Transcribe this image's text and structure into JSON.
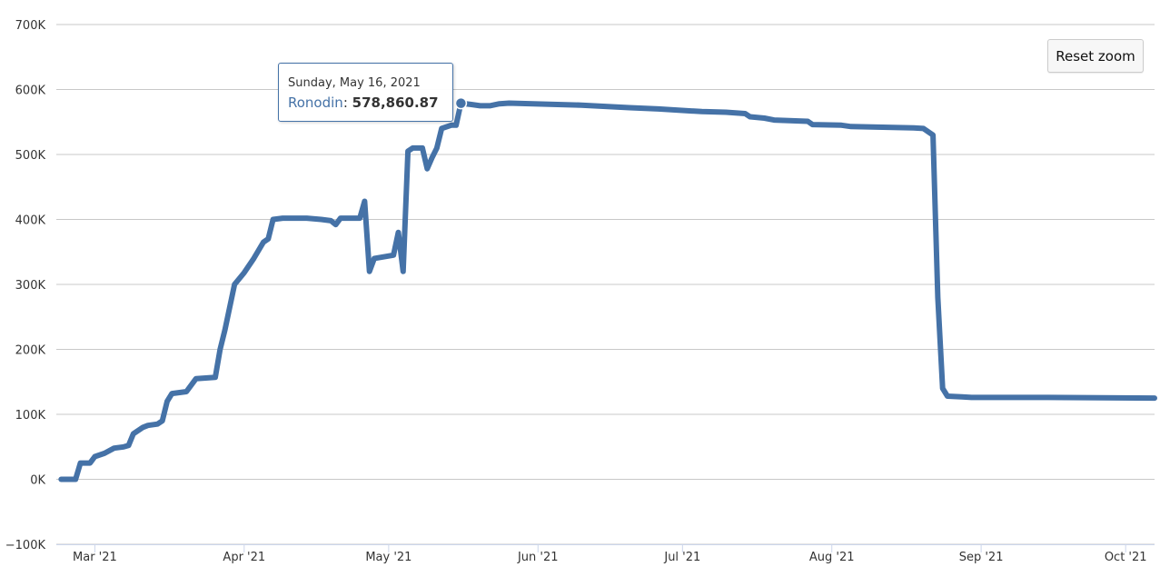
{
  "chart_data": {
    "type": "line",
    "title": "",
    "xlabel": "",
    "ylabel": "",
    "x_axis_type": "datetime",
    "xlim": [
      "2021-02-21",
      "2021-10-07"
    ],
    "ylim": [
      -100000,
      700000
    ],
    "y_ticks": [
      -100000,
      0,
      100000,
      200000,
      300000,
      400000,
      500000,
      600000,
      700000
    ],
    "y_tick_labels": [
      "−100K",
      "0K",
      "100K",
      "200K",
      "300K",
      "400K",
      "500K",
      "600K",
      "700K"
    ],
    "x_ticks": [
      {
        "date": "2021-03-01",
        "label": "Mar '21"
      },
      {
        "date": "2021-04-01",
        "label": "Apr '21"
      },
      {
        "date": "2021-05-01",
        "label": "May '21"
      },
      {
        "date": "2021-06-01",
        "label": "Jun '21"
      },
      {
        "date": "2021-07-01",
        "label": "Jul '21"
      },
      {
        "date": "2021-08-01",
        "label": "Aug '21"
      },
      {
        "date": "2021-09-01",
        "label": "Sep '21"
      },
      {
        "date": "2021-10-01",
        "label": "Oct '21"
      }
    ],
    "grid": true,
    "legend": "none",
    "series": [
      {
        "name": "Ronodin",
        "color": "#4572a7",
        "points": [
          [
            "2021-02-22",
            0
          ],
          [
            "2021-02-25",
            0
          ],
          [
            "2021-02-26",
            25000
          ],
          [
            "2021-02-28",
            25000
          ],
          [
            "2021-03-01",
            35000
          ],
          [
            "2021-03-03",
            40000
          ],
          [
            "2021-03-05",
            48000
          ],
          [
            "2021-03-07",
            50000
          ],
          [
            "2021-03-08",
            52000
          ],
          [
            "2021-03-09",
            70000
          ],
          [
            "2021-03-11",
            80000
          ],
          [
            "2021-03-12",
            83000
          ],
          [
            "2021-03-14",
            85000
          ],
          [
            "2021-03-15",
            90000
          ],
          [
            "2021-03-16",
            120000
          ],
          [
            "2021-03-17",
            132000
          ],
          [
            "2021-03-20",
            135000
          ],
          [
            "2021-03-22",
            155000
          ],
          [
            "2021-03-26",
            157000
          ],
          [
            "2021-03-27",
            200000
          ],
          [
            "2021-03-28",
            230000
          ],
          [
            "2021-03-30",
            300000
          ],
          [
            "2021-04-01",
            318000
          ],
          [
            "2021-04-03",
            340000
          ],
          [
            "2021-04-05",
            365000
          ],
          [
            "2021-04-06",
            370000
          ],
          [
            "2021-04-07",
            400000
          ],
          [
            "2021-04-09",
            402000
          ],
          [
            "2021-04-14",
            402000
          ],
          [
            "2021-04-17",
            400000
          ],
          [
            "2021-04-19",
            398000
          ],
          [
            "2021-04-20",
            392000
          ],
          [
            "2021-04-21",
            402000
          ],
          [
            "2021-04-25",
            402000
          ],
          [
            "2021-04-26",
            428000
          ],
          [
            "2021-04-27",
            320000
          ],
          [
            "2021-04-28",
            340000
          ],
          [
            "2021-05-02",
            345000
          ],
          [
            "2021-05-03",
            380000
          ],
          [
            "2021-05-04",
            320000
          ],
          [
            "2021-05-05",
            505000
          ],
          [
            "2021-05-06",
            510000
          ],
          [
            "2021-05-08",
            510000
          ],
          [
            "2021-05-09",
            478000
          ],
          [
            "2021-05-10",
            495000
          ],
          [
            "2021-05-11",
            510000
          ],
          [
            "2021-05-12",
            540000
          ],
          [
            "2021-05-14",
            545000
          ],
          [
            "2021-05-15",
            545000
          ],
          [
            "2021-05-16",
            578860.87
          ],
          [
            "2021-05-18",
            577000
          ],
          [
            "2021-05-20",
            575000
          ],
          [
            "2021-05-22",
            575000
          ],
          [
            "2021-05-24",
            578000
          ],
          [
            "2021-05-26",
            579000
          ],
          [
            "2021-06-10",
            576000
          ],
          [
            "2021-06-20",
            572000
          ],
          [
            "2021-06-26",
            570000
          ],
          [
            "2021-07-05",
            566000
          ],
          [
            "2021-07-10",
            565000
          ],
          [
            "2021-07-14",
            563000
          ],
          [
            "2021-07-15",
            558000
          ],
          [
            "2021-07-18",
            556000
          ],
          [
            "2021-07-20",
            553000
          ],
          [
            "2021-07-27",
            551000
          ],
          [
            "2021-07-28",
            546000
          ],
          [
            "2021-08-03",
            545000
          ],
          [
            "2021-08-05",
            543000
          ],
          [
            "2021-08-18",
            541000
          ],
          [
            "2021-08-20",
            540000
          ],
          [
            "2021-08-21",
            535000
          ],
          [
            "2021-08-22",
            530000
          ],
          [
            "2021-08-23",
            280000
          ],
          [
            "2021-08-24",
            140000
          ],
          [
            "2021-08-25",
            128000
          ],
          [
            "2021-08-28",
            127000
          ],
          [
            "2021-08-30",
            126000
          ],
          [
            "2021-09-15",
            126000
          ],
          [
            "2021-10-07",
            125000
          ]
        ]
      }
    ],
    "tooltip": {
      "date": "Sunday, May 16, 2021",
      "series": "Ronodin",
      "value": "578,860.87",
      "point": [
        "2021-05-16",
        578860.87
      ]
    }
  },
  "controls": {
    "reset_zoom": "Reset zoom"
  }
}
